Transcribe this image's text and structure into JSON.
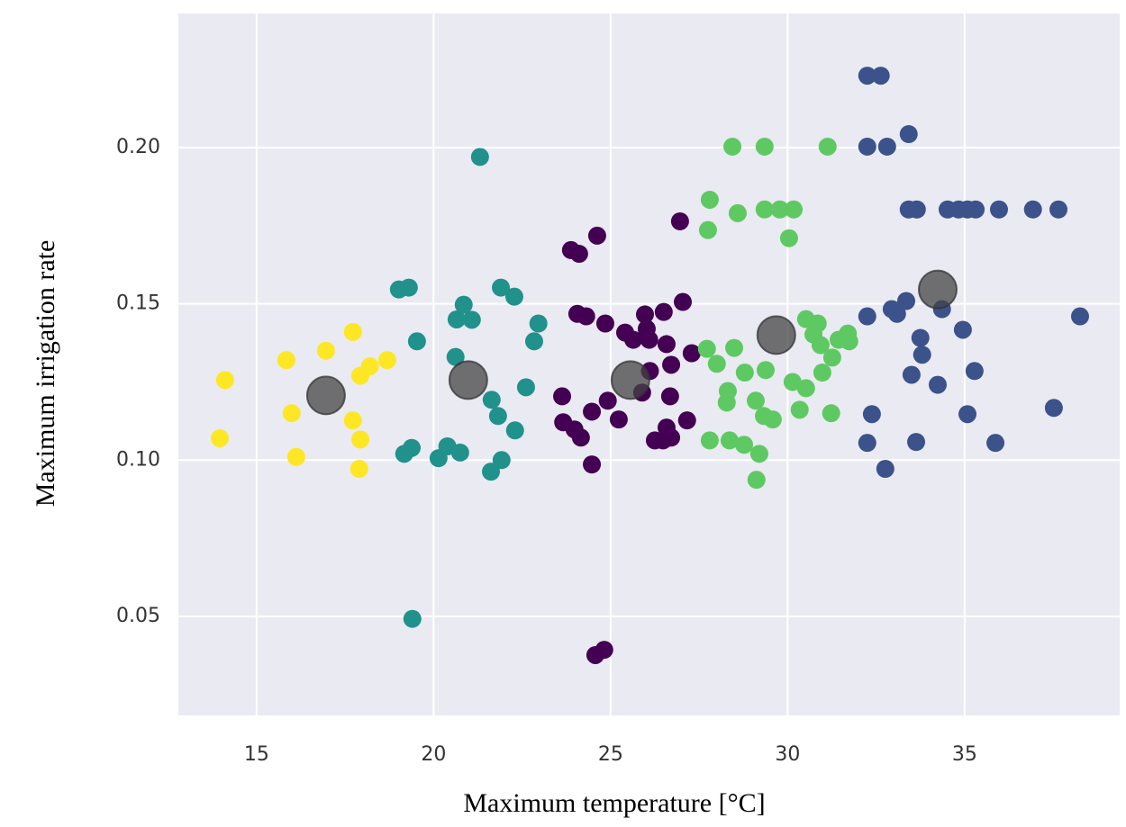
{
  "chart_data": {
    "type": "scatter",
    "x_label": "Maximum temperature [°C]",
    "y_label": "Maximum irrigation rate",
    "xlim": [
      12.79,
      39.38
    ],
    "ylim": [
      0.0183,
      0.2429
    ],
    "xticks": [
      15,
      20,
      25,
      30,
      35
    ],
    "yticks": [
      0.05,
      {
        "value": 0.1,
        "label": "0.10"
      },
      0.15,
      {
        "value": 0.2,
        "label": "0.20"
      }
    ],
    "grid": true,
    "background": "#eaeaf2",
    "series": [
      {
        "color": "#fde725",
        "x": [
          14.11,
          13.96,
          15.84,
          15.99,
          16.12,
          16.96,
          17.72,
          17.72,
          17.93,
          17.93,
          17.9,
          18.2,
          18.69
        ],
        "values": [
          0.1256,
          0.107,
          0.132,
          0.115,
          0.101,
          0.135,
          0.141,
          0.1127,
          0.127,
          0.1066,
          0.0972,
          0.13,
          0.132
        ]
      },
      {
        "color": "#21918c",
        "x": [
          21.31,
          19.02,
          19.3,
          19.53,
          19.4,
          19.17,
          19.38,
          20.14,
          20.39,
          20.75,
          20.62,
          20.65,
          20.85,
          21.08,
          21.9,
          22.28,
          22.96,
          22.84,
          22.61,
          21.64,
          21.82,
          22.3,
          21.62,
          21.92
        ],
        "values": [
          0.197,
          0.1546,
          0.1552,
          0.138,
          0.0492,
          0.102,
          0.1039,
          0.1006,
          0.1044,
          0.1024,
          0.133,
          0.145,
          0.1497,
          0.1449,
          0.1552,
          0.1523,
          0.1437,
          0.138,
          0.1233,
          0.1193,
          0.1141,
          0.1095,
          0.0963,
          0.1
        ]
      },
      {
        "color": "#440154",
        "x": [
          23.88,
          24.11,
          24.62,
          26.96,
          24.06,
          24.31,
          24.85,
          23.63,
          23.66,
          23.98,
          24.16,
          24.47,
          24.47,
          24.92,
          25.23,
          25.41,
          25.64,
          25.97,
          26.02,
          26.09,
          25.89,
          26.11,
          26.25,
          26.5,
          26.58,
          26.71,
          26.68,
          26.48,
          26.71,
          26.58,
          27.04,
          27.16,
          27.29,
          24.57,
          24.82
        ],
        "values": [
          0.1672,
          0.166,
          0.1718,
          0.1764,
          0.1468,
          0.146,
          0.1437,
          0.1204,
          0.1121,
          0.1098,
          0.1072,
          0.1155,
          0.0986,
          0.119,
          0.113,
          0.1408,
          0.1385,
          0.1466,
          0.142,
          0.1385,
          0.1216,
          0.1285,
          0.1063,
          0.1474,
          0.1371,
          0.1305,
          0.1204,
          0.1063,
          0.1072,
          0.1104,
          0.1506,
          0.1127,
          0.1342,
          0.0376,
          0.0393
        ]
      },
      {
        "color": "#5ec962",
        "x": [
          28.44,
          29.35,
          31.13,
          27.8,
          27.75,
          28.59,
          29.35,
          29.78,
          30.17,
          30.04,
          27.72,
          28.0,
          28.49,
          28.31,
          28.28,
          28.79,
          29.38,
          29.1,
          27.8,
          28.36,
          28.77,
          29.2,
          29.12,
          29.33,
          29.58,
          30.14,
          30.52,
          30.34,
          30.52,
          30.85,
          30.73,
          30.93,
          30.98,
          31.26,
          31.44,
          31.7,
          31.74,
          31.23
        ],
        "values": [
          0.2003,
          0.2003,
          0.2003,
          0.1833,
          0.1736,
          0.179,
          0.1802,
          0.1802,
          0.1802,
          0.171,
          0.1356,
          0.1308,
          0.1359,
          0.1221,
          0.1184,
          0.128,
          0.1288,
          0.119,
          0.1063,
          0.1063,
          0.1049,
          0.102,
          0.0937,
          0.1141,
          0.113,
          0.125,
          0.123,
          0.1161,
          0.1451,
          0.1437,
          0.1402,
          0.1368,
          0.128,
          0.1328,
          0.1385,
          0.1405,
          0.138,
          0.115
        ]
      },
      {
        "color": "#3b528b",
        "x": [
          32.25,
          32.63,
          32.25,
          32.81,
          33.42,
          33.42,
          33.65,
          34.52,
          34.83,
          35.08,
          35.31,
          35.97,
          36.93,
          37.65,
          32.25,
          32.94,
          33.09,
          33.35,
          33.75,
          33.8,
          33.5,
          34.36,
          34.24,
          34.95,
          35.28,
          35.08,
          32.38,
          32.25,
          32.76,
          33.63,
          35.87,
          37.52,
          38.26
        ],
        "values": [
          0.223,
          0.223,
          0.2003,
          0.2003,
          0.2043,
          0.1802,
          0.1802,
          0.1802,
          0.1802,
          0.1802,
          0.1802,
          0.1802,
          0.1802,
          0.1802,
          0.146,
          0.1483,
          0.1468,
          0.1509,
          0.1391,
          0.1337,
          0.1273,
          0.1483,
          0.1241,
          0.1417,
          0.1285,
          0.1147,
          0.1147,
          0.1055,
          0.0972,
          0.1058,
          0.1055,
          0.1167,
          0.146
        ]
      },
      {
        "color": "#444444",
        "opacity": 0.75,
        "x": [
          16.96,
          20.98,
          25.56,
          29.68,
          34.24
        ],
        "values": [
          0.1207,
          0.1256,
          0.1256,
          0.14,
          0.1546
        ]
      }
    ]
  }
}
